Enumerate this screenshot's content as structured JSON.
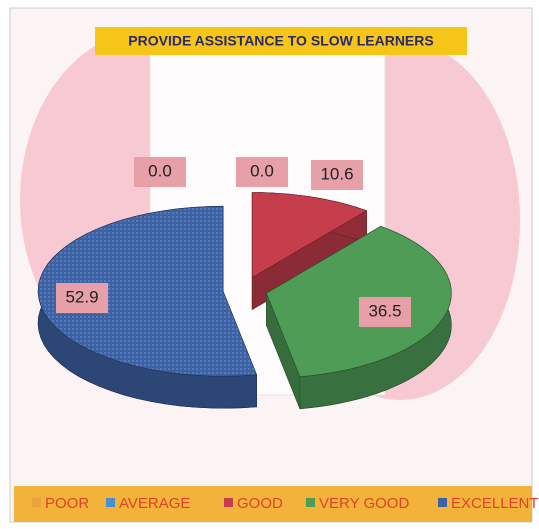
{
  "chart_data": {
    "type": "pie3d",
    "title": "PROVIDE ASSISTANCE TO SLOW LEARNERS",
    "categories": [
      "POOR",
      "AVERAGE",
      "GOOD",
      "VERY GOOD",
      "EXCELLENT"
    ],
    "values": [
      0,
      0,
      10.6,
      36.5,
      52.9
    ],
    "value_labels": [
      "0.0",
      "0.0",
      "10.6",
      "36.5",
      "52.9"
    ],
    "colors": [
      "#e8a33a",
      "#4a90d0",
      "#c63d4b",
      "#4f9c57",
      "#3d62a3"
    ],
    "legend": "bottom"
  }
}
